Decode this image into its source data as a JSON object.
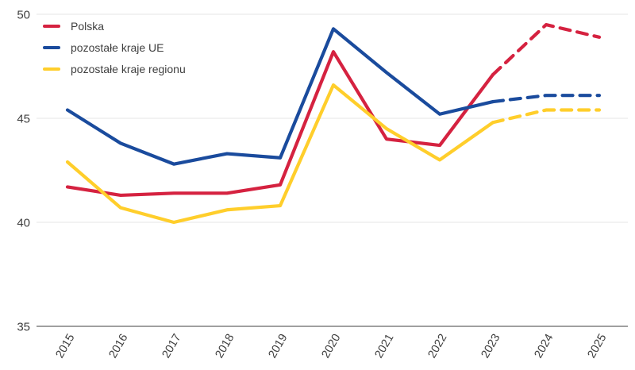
{
  "chart": {
    "background_color": "#ffffff",
    "text_color": "#3f3f3f",
    "grid_color": "#e9e9e9",
    "axis_color": "#a0a0a0"
  },
  "chart_data": {
    "type": "line",
    "title": "",
    "xlabel": "",
    "ylabel": "",
    "x": [
      "2015",
      "2016",
      "2017",
      "2018",
      "2019",
      "2020",
      "2021",
      "2022",
      "2023",
      "2024",
      "2025"
    ],
    "ylim": [
      35,
      50
    ],
    "yticks": [
      35,
      40,
      45,
      50
    ],
    "grid": "horizontal",
    "legend_position": "top-left",
    "style_note": "lines solid through 2023, dashed 2024-2025",
    "series": [
      {
        "id": "polska",
        "name": "Polska",
        "color": "#d52240",
        "values": [
          41.7,
          41.3,
          41.4,
          41.4,
          41.8,
          48.2,
          44.0,
          43.7,
          47.1,
          49.5,
          48.9
        ],
        "solid_until_index": 8
      },
      {
        "id": "ue",
        "name": "pozostałe kraje UE",
        "color": "#1a4b9d",
        "values": [
          45.4,
          43.8,
          42.8,
          43.3,
          43.1,
          49.3,
          47.2,
          45.2,
          45.8,
          46.1,
          46.1
        ],
        "solid_until_index": 8
      },
      {
        "id": "region",
        "name": "pozostałe kraje regionu",
        "color": "#ffce2b",
        "values": [
          42.9,
          40.7,
          40.0,
          40.6,
          40.8,
          46.6,
          44.5,
          43.0,
          44.8,
          45.4,
          45.4
        ],
        "solid_until_index": 8
      }
    ]
  }
}
